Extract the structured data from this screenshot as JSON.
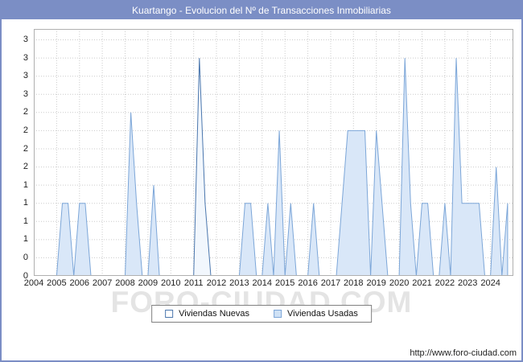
{
  "window": {
    "title": "Kuartango - Evolucion del Nº de Transacciones Inmobiliarias",
    "frame_color": "#7b8ec5"
  },
  "chart_data": {
    "type": "area",
    "title": "Kuartango - Evolucion del Nº de Transacciones Inmobiliarias",
    "x_start": 2004,
    "x_step": 0.25,
    "xlim": [
      2004,
      2025
    ],
    "ylim": [
      0,
      3.4
    ],
    "grid": true,
    "grid_color": "#cccccc",
    "axis_color": "#b0b0b0",
    "legend_position": "bottom-center",
    "x_ticks": [
      2004,
      2005,
      2006,
      2007,
      2008,
      2009,
      2010,
      2011,
      2012,
      2013,
      2014,
      2015,
      2016,
      2017,
      2018,
      2019,
      2020,
      2021,
      2022,
      2023,
      2024
    ],
    "y_ticks": {
      "values": [
        0,
        0.25,
        0.5,
        0.75,
        1,
        1.25,
        1.5,
        1.75,
        2,
        2.25,
        2.5,
        2.75,
        3,
        3.25
      ],
      "labels": [
        "0",
        "0",
        "1",
        "1",
        "1",
        "1",
        "2",
        "2",
        "2",
        "2",
        "3",
        "3",
        "3",
        "3"
      ]
    },
    "series": [
      {
        "name": "Viviendas Nuevas",
        "stroke": "#4a76ad",
        "fill": "#f2f7fd",
        "values": [
          0,
          0,
          0,
          0,
          0,
          0,
          0,
          0,
          0,
          0,
          0,
          0,
          0,
          0,
          0,
          0,
          0,
          0,
          0,
          0,
          0,
          0,
          0,
          0,
          0,
          0,
          0,
          0,
          0,
          3,
          1,
          0,
          0,
          0,
          0,
          0,
          0,
          0,
          0,
          0,
          0,
          0,
          0,
          0,
          0,
          0,
          0,
          0,
          0,
          0,
          0,
          0,
          0,
          0,
          0,
          0,
          0,
          0,
          0,
          0,
          0,
          0,
          0,
          0,
          0,
          0,
          0,
          0,
          0,
          0,
          0,
          0,
          0,
          0,
          0,
          0,
          0,
          0,
          0,
          0,
          0,
          0,
          0,
          0
        ]
      },
      {
        "name": "Viviendas Usadas",
        "stroke": "#7ca6d8",
        "fill": "#d9e7f8",
        "values": [
          0,
          0,
          0,
          0,
          0,
          1,
          1,
          0,
          1,
          1,
          0,
          0,
          0,
          0,
          0,
          0,
          0,
          2.25,
          1,
          0,
          0,
          1.25,
          0,
          0,
          0,
          0,
          0,
          0,
          0,
          0,
          0,
          0,
          0,
          0,
          0,
          0,
          0,
          1,
          1,
          0,
          0,
          1,
          0,
          2,
          0,
          1,
          0,
          0,
          0,
          1,
          0,
          0,
          0,
          0,
          1,
          2,
          2,
          2,
          2,
          0,
          2,
          1,
          0,
          0,
          0,
          3,
          1,
          0,
          1,
          1,
          0,
          0,
          1,
          0,
          3,
          1,
          1,
          1,
          1,
          0,
          0,
          1.5,
          0,
          1
        ]
      }
    ]
  },
  "legend": {
    "items": [
      {
        "label": "Viviendas Nuevas",
        "swatch_fill": "#ffffff",
        "swatch_border": "#4a76ad"
      },
      {
        "label": "Viviendas Usadas",
        "swatch_fill": "#cfe1f5",
        "swatch_border": "#7ca6d8"
      }
    ]
  },
  "watermark": "FORO-CIUDAD.COM",
  "footer": {
    "url": "http://www.foro-ciudad.com"
  }
}
